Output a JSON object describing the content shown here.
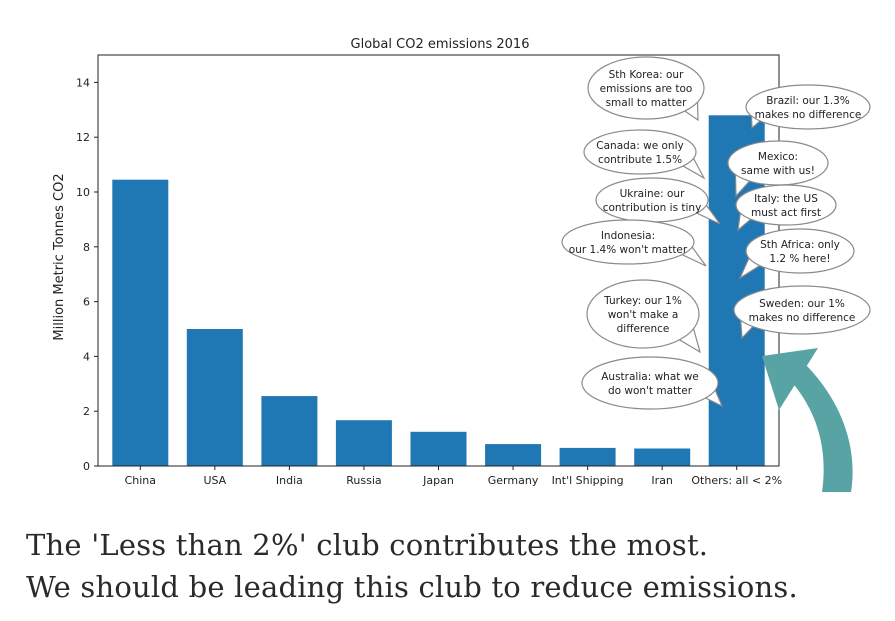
{
  "chart_data": {
    "type": "bar",
    "title": "Global CO2 emissions 2016",
    "xlabel": "",
    "ylabel": "Million Metric Tonnes CO2",
    "categories": [
      "China",
      "USA",
      "India",
      "Russia",
      "Japan",
      "Germany",
      "Int'l Shipping",
      "Iran",
      "Others: all < 2%"
    ],
    "values": [
      10.45,
      5.0,
      2.55,
      1.67,
      1.25,
      0.8,
      0.66,
      0.64,
      12.8
    ],
    "ylim": [
      0,
      15
    ],
    "yticks": [
      0,
      2,
      4,
      6,
      8,
      10,
      12,
      14
    ],
    "grid": false,
    "bar_color": "#1f77b4",
    "annotations": [
      "Sth Korea: our emissions are too small to matter",
      "Brazil: our 1.3% makes no difference",
      "Canada: we only contribute 1.5%",
      "Mexico: same with us!",
      "Ukraine: our contribution is tiny",
      "Italy: the US must act first",
      "Indonesia: our 1.4% won't matter",
      "Sth Africa: only 1.2 % here!",
      "Turkey: our 1% won't make a difference",
      "Sweden: our 1% makes no difference",
      "Australia: what we do won't matter"
    ],
    "arrow_color": "#58a4a4"
  },
  "caption": {
    "line1": "The 'Less than 2%' club contributes the most.",
    "line2": "We should be leading this club to reduce emissions."
  }
}
